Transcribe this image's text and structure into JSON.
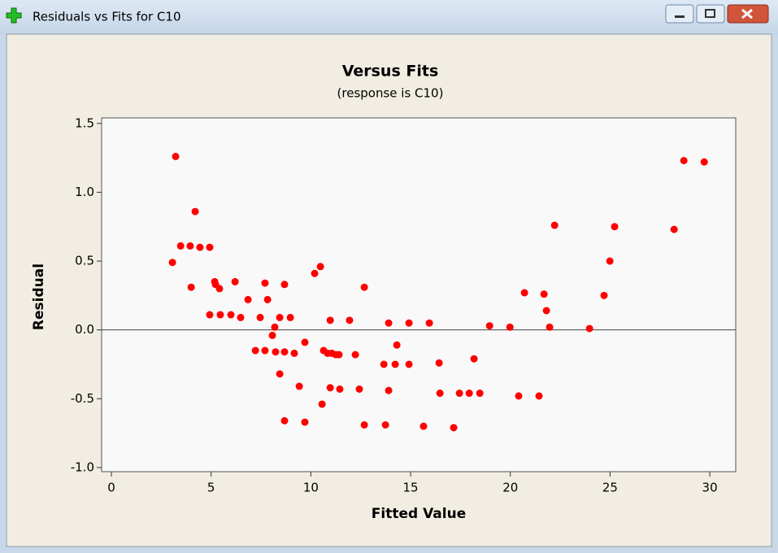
{
  "window": {
    "title": "Residuals vs Fits for C10"
  },
  "chart_data": {
    "type": "scatter",
    "title": "Versus Fits",
    "subtitle": "(response is C10)",
    "x_label": "Fitted Value",
    "y_label": "Residual",
    "color": "#ff0000",
    "reference_line": 0,
    "xlim": [
      -0.49,
      31.3
    ],
    "ylim": [
      -1.03,
      1.54
    ],
    "xticks": [
      0,
      5,
      10,
      15,
      20,
      25,
      30
    ],
    "yticks": [
      {
        "value": -1.0,
        "label": "-1.0"
      },
      -0.5,
      {
        "value": 0.0,
        "label": "0.0"
      },
      0.5,
      {
        "value": 1.0,
        "label": "1.0"
      },
      1.5
    ],
    "x": [
      3.06,
      3.22,
      3.47,
      3.95,
      4.0,
      4.2,
      4.44,
      4.93,
      4.93,
      5.18,
      5.22,
      5.42,
      5.46,
      5.99,
      6.2,
      6.48,
      6.85,
      7.22,
      7.46,
      7.7,
      7.7,
      7.83,
      8.07,
      8.19,
      8.23,
      8.44,
      8.44,
      8.68,
      8.68,
      8.68,
      8.97,
      9.17,
      9.42,
      9.7,
      9.7,
      10.19,
      10.48,
      10.56,
      10.64,
      10.84,
      10.97,
      10.97,
      11.05,
      11.25,
      11.41,
      11.45,
      11.94,
      12.23,
      12.43,
      12.68,
      12.68,
      13.66,
      13.74,
      13.9,
      13.9,
      14.23,
      14.31,
      14.92,
      14.92,
      15.65,
      15.94,
      16.43,
      16.47,
      17.16,
      17.45,
      17.94,
      18.18,
      18.47,
      18.96,
      19.98,
      20.42,
      20.71,
      21.44,
      21.69,
      21.81,
      21.97,
      22.22,
      23.97,
      24.7,
      24.99,
      25.23,
      28.21,
      28.7,
      29.72
    ],
    "values": [
      0.49,
      1.26,
      0.61,
      0.61,
      0.31,
      0.86,
      0.6,
      0.6,
      0.11,
      0.35,
      0.33,
      0.3,
      0.11,
      0.11,
      0.35,
      0.09,
      0.22,
      -0.15,
      0.09,
      0.34,
      -0.15,
      0.22,
      -0.04,
      0.02,
      -0.16,
      0.09,
      -0.32,
      0.33,
      -0.16,
      -0.66,
      0.09,
      -0.17,
      -0.41,
      -0.09,
      -0.67,
      0.41,
      0.46,
      -0.54,
      -0.15,
      -0.17,
      0.07,
      -0.42,
      -0.17,
      -0.18,
      -0.18,
      -0.43,
      0.07,
      -0.18,
      -0.43,
      0.31,
      -0.69,
      -0.25,
      -0.69,
      0.05,
      -0.44,
      -0.25,
      -0.11,
      0.05,
      -0.25,
      -0.7,
      0.05,
      -0.24,
      -0.46,
      -0.71,
      -0.46,
      -0.46,
      -0.21,
      -0.46,
      0.03,
      0.02,
      -0.48,
      0.27,
      -0.48,
      0.26,
      0.14,
      0.02,
      0.76,
      0.01,
      0.25,
      0.5,
      0.75,
      0.73,
      1.23,
      1.22
    ]
  }
}
